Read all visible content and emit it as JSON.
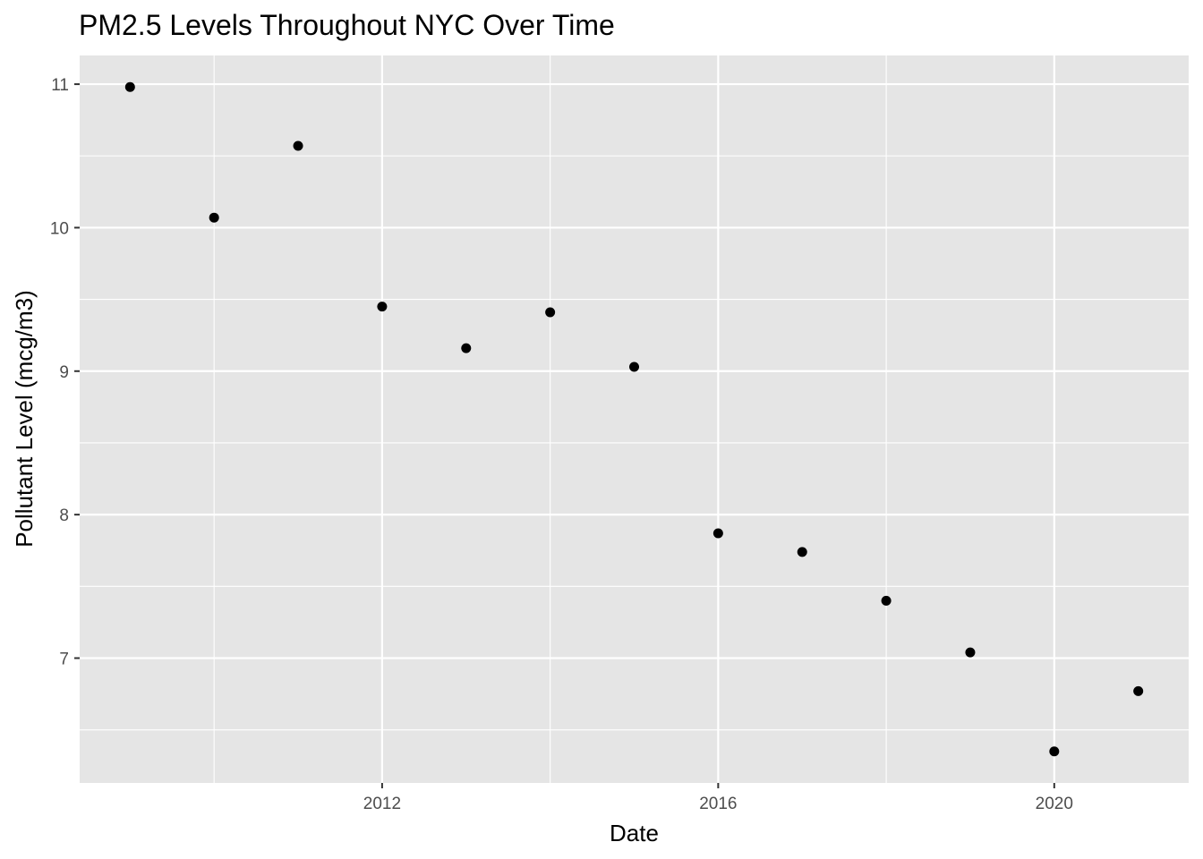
{
  "chart_data": {
    "type": "scatter",
    "title": "PM2.5 Levels Throughout NYC Over Time",
    "xlabel": "Date",
    "ylabel": "Pollutant Level (mcg/m3)",
    "x": [
      "2009",
      "2010",
      "2011",
      "2012",
      "2013",
      "2014",
      "2015",
      "2016",
      "2017",
      "2018",
      "2019",
      "2020",
      "2021"
    ],
    "y": [
      10.98,
      10.07,
      10.57,
      9.45,
      9.16,
      9.41,
      9.03,
      7.87,
      7.74,
      7.4,
      7.04,
      6.35,
      6.77
    ],
    "xlim": [
      "2008.4",
      "2021.6"
    ],
    "ylim": [
      6.13,
      11.2
    ],
    "x_ticks": [
      "2012",
      "2016",
      "2020"
    ],
    "y_ticks": [
      "7",
      "8",
      "9",
      "10",
      "11"
    ],
    "grid": true,
    "colors": {
      "panel": "#e5e5e5",
      "grid": "#ffffff",
      "point": "#000000",
      "tick": "#4d4d4d"
    }
  }
}
